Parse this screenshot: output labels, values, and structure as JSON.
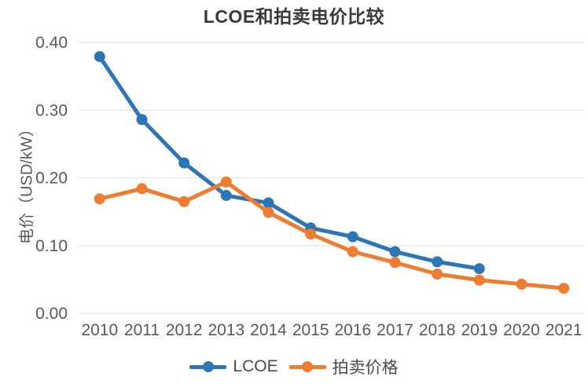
{
  "chart_data": {
    "type": "line",
    "title": "LCOE和拍卖电价比较",
    "ylabel": "电价（USD/kW）",
    "xlabel": "",
    "categories": [
      "2010",
      "2011",
      "2012",
      "2013",
      "2014",
      "2015",
      "2016",
      "2017",
      "2018",
      "2019",
      "2020",
      "2021"
    ],
    "series": [
      {
        "name": "LCOE",
        "color": "#2E75B6",
        "values": [
          0.379,
          0.286,
          0.222,
          0.174,
          0.163,
          0.126,
          0.113,
          0.091,
          0.076,
          0.066,
          null,
          null
        ]
      },
      {
        "name": "拍卖价格",
        "color": "#ED7D31",
        "values": [
          0.169,
          0.184,
          0.165,
          0.194,
          0.149,
          0.117,
          0.091,
          0.075,
          0.058,
          0.049,
          0.043,
          0.037
        ]
      }
    ],
    "ylim": [
      0,
      0.4
    ],
    "yticks": [
      0.4,
      0.3,
      0.2,
      0.1,
      0.0
    ],
    "y_tick_labels": [
      "0.40",
      "0.30",
      "0.20",
      "0.10",
      "0.00"
    ],
    "grid": "horizontal",
    "grid_color": "#e8e8e8",
    "legend_position": "bottom"
  }
}
